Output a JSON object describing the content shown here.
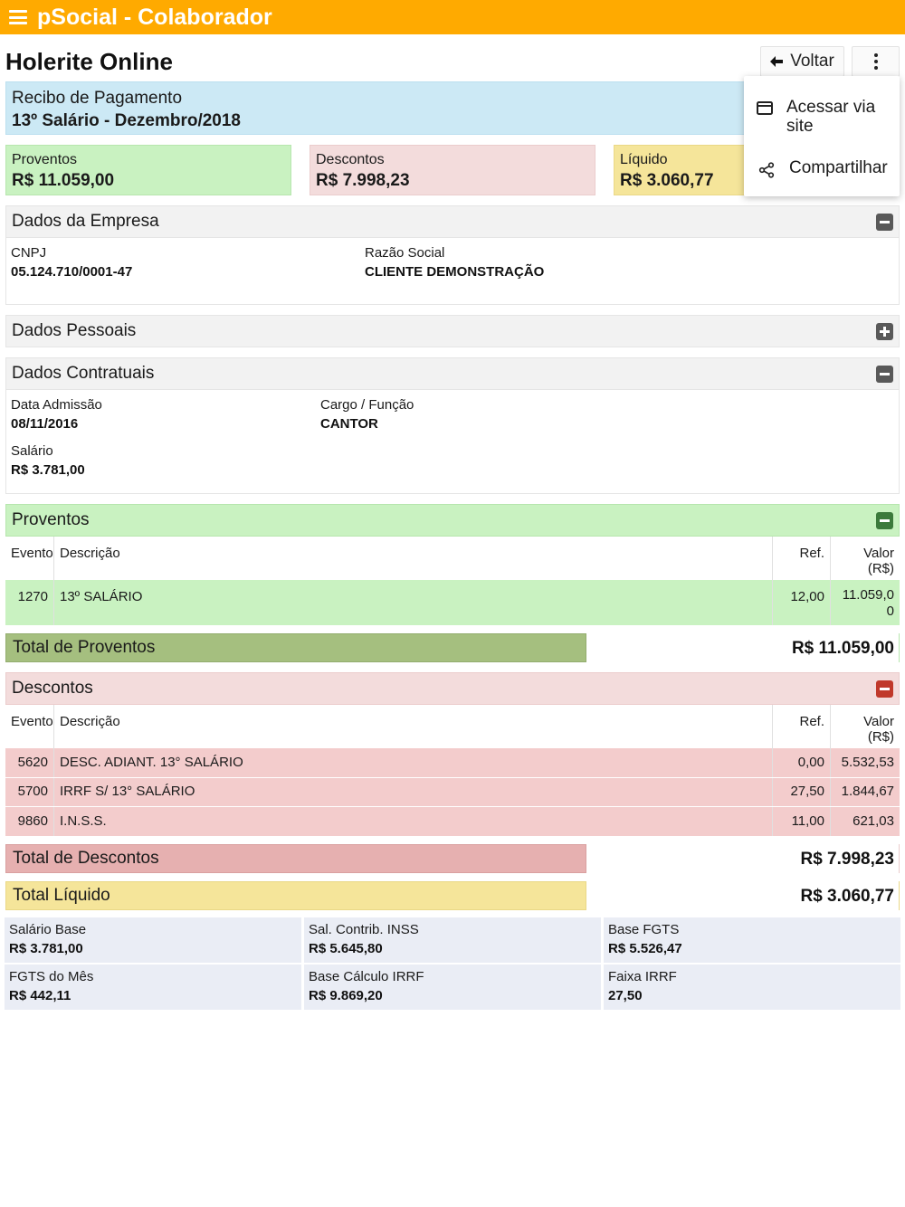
{
  "app": {
    "title": "pSocial - Colaborador",
    "menu_icon": "hamburger-icon"
  },
  "page": {
    "title": "Holerite Online"
  },
  "toolbar": {
    "back_label": "Voltar",
    "back_icon": "arrow-left-icon",
    "more_icon": "more-vertical-icon"
  },
  "menu": {
    "items": [
      {
        "label": "Acessar via site",
        "icon": "browser-window-icon"
      },
      {
        "label": "Compartilhar",
        "icon": "share-icon"
      }
    ]
  },
  "receipt": {
    "label": "Recibo de Pagamento",
    "period": "13º Salário - Dezembro/2018"
  },
  "summary": {
    "proventos": {
      "label": "Proventos",
      "value": "R$ 11.059,00"
    },
    "descontos": {
      "label": "Descontos",
      "value": "R$ 7.998,23"
    },
    "liquido": {
      "label": "Líquido",
      "value": "R$ 3.060,77"
    }
  },
  "empresa": {
    "title": "Dados da Empresa",
    "cnpj_label": "CNPJ",
    "cnpj": "05.124.710/0001-47",
    "razao_label": "Razão Social",
    "razao": "CLIENTE DEMONSTRAÇÃO"
  },
  "pessoais": {
    "title": "Dados Pessoais"
  },
  "contratuais": {
    "title": "Dados Contratuais",
    "admissao_label": "Data Admissão",
    "admissao": "08/11/2016",
    "cargo_label": "Cargo / Função",
    "cargo": "CANTOR",
    "salario_label": "Salário",
    "salario": "R$ 3.781,00"
  },
  "proventos": {
    "title": "Proventos",
    "headers": {
      "evento": "Evento",
      "descricao": "Descrição",
      "ref": "Ref.",
      "valor": "Valor (R$)"
    },
    "rows": [
      {
        "evento": "1270",
        "descricao": "13º SALÁRIO",
        "ref": "12,00",
        "valor": "11.059,00"
      }
    ],
    "total_label": "Total de Proventos",
    "total": "R$ 11.059,00"
  },
  "descontos": {
    "title": "Descontos",
    "headers": {
      "evento": "Evento",
      "descricao": "Descrição",
      "ref": "Ref.",
      "valor": "Valor (R$)"
    },
    "rows": [
      {
        "evento": "5620",
        "descricao": "DESC. ADIANT. 13° SALÁRIO",
        "ref": "0,00",
        "valor": "5.532,53"
      },
      {
        "evento": "5700",
        "descricao": "IRRF S/ 13° SALÁRIO",
        "ref": "27,50",
        "valor": "1.844,67"
      },
      {
        "evento": "9860",
        "descricao": "I.N.S.S.",
        "ref": "11,00",
        "valor": "621,03"
      }
    ],
    "total_label": "Total de Descontos",
    "total": "R$ 7.998,23"
  },
  "liquido": {
    "total_label": "Total Líquido",
    "total": "R$ 3.060,77"
  },
  "bases": [
    {
      "label": "Salário Base",
      "value": "R$ 3.781,00"
    },
    {
      "label": "Sal. Contrib. INSS",
      "value": "R$ 5.645,80"
    },
    {
      "label": "Base FGTS",
      "value": "R$ 5.526,47"
    },
    {
      "label": "FGTS do Mês",
      "value": "R$ 442,11"
    },
    {
      "label": "Base Cálculo IRRF",
      "value": "R$ 9.869,20"
    },
    {
      "label": "Faixa IRRF",
      "value": "27,50"
    }
  ],
  "colors": {
    "appbar": "#ffaa00",
    "info": "#cce9f5",
    "proventos": "#c9f2c1",
    "descontos": "#f3dcdc",
    "liquido": "#f5e59a",
    "total_proventos": "#a5bf7f",
    "total_descontos": "#e6b0b0",
    "bases": "#eaedf5"
  }
}
